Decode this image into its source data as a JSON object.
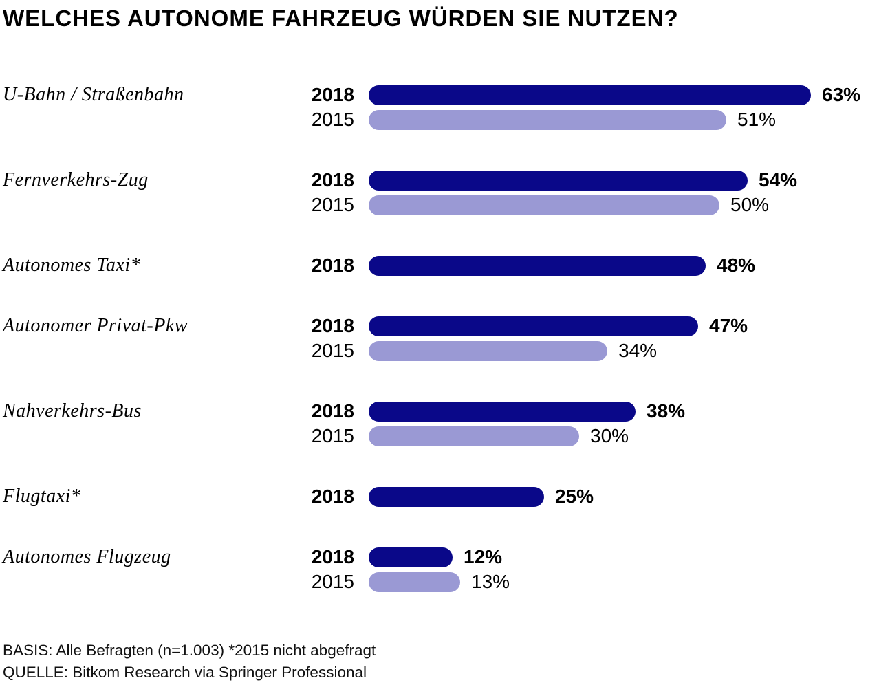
{
  "chart_data": {
    "type": "bar",
    "orientation": "horizontal",
    "title": "WELCHES AUTONOME FAHRZEUG WÜRDEN SIE NUTZEN?",
    "unit": "%",
    "xlim": [
      0,
      63
    ],
    "legend_position": "inline-year-labels",
    "grid": false,
    "series": [
      {
        "name": "2018",
        "color": "#0a0889",
        "bold": true
      },
      {
        "name": "2015",
        "color": "#9a99d4",
        "bold": false
      }
    ],
    "groups": [
      {
        "category": "U-Bahn / Straßenbahn",
        "bars": [
          {
            "series": "2018",
            "value": 63,
            "label": "63%"
          },
          {
            "series": "2015",
            "value": 51,
            "label": "51%"
          }
        ]
      },
      {
        "category": "Fernverkehrs-Zug",
        "bars": [
          {
            "series": "2018",
            "value": 54,
            "label": "54%"
          },
          {
            "series": "2015",
            "value": 50,
            "label": "50%"
          }
        ]
      },
      {
        "category": "Autonomes Taxi*",
        "bars": [
          {
            "series": "2018",
            "value": 48,
            "label": "48%"
          }
        ]
      },
      {
        "category": "Autonomer Privat-Pkw",
        "bars": [
          {
            "series": "2018",
            "value": 47,
            "label": "47%"
          },
          {
            "series": "2015",
            "value": 34,
            "label": "34%"
          }
        ]
      },
      {
        "category": "Nahverkehrs-Bus",
        "bars": [
          {
            "series": "2018",
            "value": 38,
            "label": "38%"
          },
          {
            "series": "2015",
            "value": 30,
            "label": "30%"
          }
        ]
      },
      {
        "category": "Flugtaxi*",
        "bars": [
          {
            "series": "2018",
            "value": 25,
            "label": "25%"
          }
        ]
      },
      {
        "category": "Autonomes Flugzeug",
        "bars": [
          {
            "series": "2018",
            "value": 12,
            "label": "12%"
          },
          {
            "series": "2015",
            "value": 13,
            "label": "13%"
          }
        ]
      }
    ],
    "footnotes": {
      "basis": "BASIS: Alle Befragten (n=1.003) *2015 nicht abgefragt",
      "quelle": "QUELLE: Bitkom Research via Springer Professional"
    }
  }
}
